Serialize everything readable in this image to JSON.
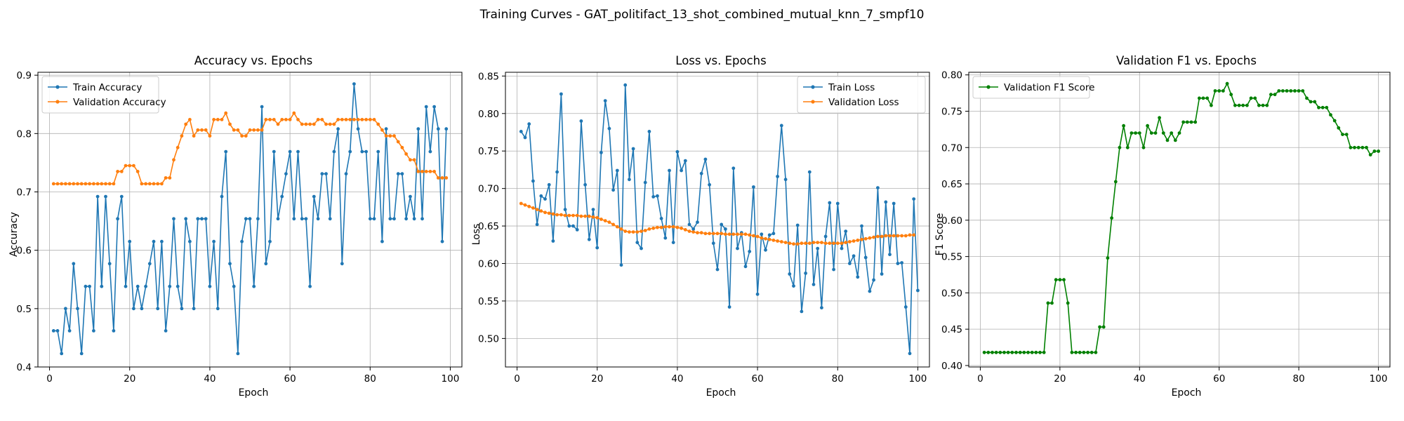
{
  "suptitle": "Training Curves - GAT_politifact_13_shot_combined_mutual_knn_7_smpf10",
  "colors": {
    "train": "#1f77b4",
    "validation": "#ff7f0e",
    "f1": "#008000",
    "grid": "#b0b0b0"
  },
  "chart_data": [
    {
      "type": "line",
      "title": "Accuracy vs. Epochs",
      "xlabel": "Epoch",
      "ylabel": "Accuracy",
      "xlim": [
        -2.9,
        102.9
      ],
      "ylim": [
        0.4,
        0.905
      ],
      "xticks": [
        0,
        20,
        40,
        60,
        80,
        100
      ],
      "yticks": [
        0.4,
        0.5,
        0.6,
        0.7,
        0.8,
        0.9
      ],
      "ytick_labels": [
        "0.4",
        "0.5",
        "0.6",
        "0.7",
        "0.8",
        "0.9"
      ],
      "legend_position": "upper left",
      "grid": true,
      "series": [
        {
          "name": "Train Accuracy",
          "color": "#1f77b4",
          "x_start": 1,
          "values": [
            0.462,
            0.462,
            0.423,
            0.5,
            0.462,
            0.577,
            0.5,
            0.423,
            0.538,
            0.538,
            0.462,
            0.692,
            0.538,
            0.692,
            0.577,
            0.462,
            0.654,
            0.692,
            0.538,
            0.615,
            0.5,
            0.538,
            0.5,
            0.538,
            0.577,
            0.615,
            0.5,
            0.615,
            0.462,
            0.538,
            0.654,
            0.538,
            0.5,
            0.654,
            0.615,
            0.5,
            0.654,
            0.654,
            0.654,
            0.538,
            0.615,
            0.5,
            0.692,
            0.769,
            0.577,
            0.538,
            0.423,
            0.615,
            0.654,
            0.654,
            0.538,
            0.654,
            0.846,
            0.577,
            0.615,
            0.769,
            0.654,
            0.692,
            0.731,
            0.769,
            0.654,
            0.769,
            0.654,
            0.654,
            0.538,
            0.692,
            0.654,
            0.731,
            0.731,
            0.654,
            0.769,
            0.808,
            0.577,
            0.731,
            0.769,
            0.885,
            0.808,
            0.769,
            0.769,
            0.654,
            0.654,
            0.769,
            0.615,
            0.808,
            0.654,
            0.654,
            0.731,
            0.731,
            0.654,
            0.692,
            0.654,
            0.808,
            0.654,
            0.846,
            0.769,
            0.846,
            0.808,
            0.615,
            0.808
          ]
        },
        {
          "name": "Validation Accuracy",
          "color": "#ff7f0e",
          "x_start": 1,
          "values": [
            0.714,
            0.714,
            0.714,
            0.714,
            0.714,
            0.714,
            0.714,
            0.714,
            0.714,
            0.714,
            0.714,
            0.714,
            0.714,
            0.714,
            0.714,
            0.714,
            0.735,
            0.735,
            0.745,
            0.745,
            0.745,
            0.735,
            0.714,
            0.714,
            0.714,
            0.714,
            0.714,
            0.714,
            0.724,
            0.724,
            0.755,
            0.776,
            0.796,
            0.816,
            0.824,
            0.796,
            0.806,
            0.806,
            0.806,
            0.796,
            0.824,
            0.824,
            0.824,
            0.835,
            0.816,
            0.806,
            0.806,
            0.796,
            0.796,
            0.806,
            0.806,
            0.806,
            0.806,
            0.824,
            0.824,
            0.824,
            0.816,
            0.824,
            0.824,
            0.824,
            0.835,
            0.824,
            0.816,
            0.816,
            0.816,
            0.816,
            0.824,
            0.824,
            0.816,
            0.816,
            0.816,
            0.824,
            0.824,
            0.824,
            0.824,
            0.824,
            0.824,
            0.824,
            0.824,
            0.824,
            0.824,
            0.816,
            0.806,
            0.796,
            0.796,
            0.796,
            0.786,
            0.776,
            0.765,
            0.755,
            0.755,
            0.735,
            0.735,
            0.735,
            0.735,
            0.735,
            0.724,
            0.724,
            0.724
          ]
        }
      ]
    },
    {
      "type": "line",
      "title": "Loss vs. Epochs",
      "xlabel": "Epoch",
      "ylabel": "Loss",
      "xlim": [
        -2.9,
        102.9
      ],
      "ylim": [
        0.462,
        0.855
      ],
      "xticks": [
        0,
        20,
        40,
        60,
        80,
        100
      ],
      "yticks": [
        0.5,
        0.55,
        0.6,
        0.65,
        0.7,
        0.75,
        0.8,
        0.85
      ],
      "ytick_labels": [
        "0.50",
        "0.55",
        "0.60",
        "0.65",
        "0.70",
        "0.75",
        "0.80",
        "0.85"
      ],
      "legend_position": "upper right",
      "grid": true,
      "series": [
        {
          "name": "Train Loss",
          "color": "#1f77b4",
          "x_start": 1,
          "values": [
            0.776,
            0.768,
            0.786,
            0.71,
            0.652,
            0.69,
            0.686,
            0.705,
            0.63,
            0.722,
            0.826,
            0.672,
            0.65,
            0.65,
            0.645,
            0.79,
            0.705,
            0.632,
            0.672,
            0.621,
            0.748,
            0.817,
            0.78,
            0.698,
            0.724,
            0.598,
            0.838,
            0.712,
            0.753,
            0.628,
            0.62,
            0.708,
            0.776,
            0.689,
            0.69,
            0.66,
            0.634,
            0.724,
            0.628,
            0.749,
            0.724,
            0.737,
            0.652,
            0.646,
            0.655,
            0.72,
            0.739,
            0.705,
            0.627,
            0.592,
            0.652,
            0.646,
            0.542,
            0.727,
            0.62,
            0.641,
            0.596,
            0.616,
            0.702,
            0.559,
            0.639,
            0.618,
            0.638,
            0.64,
            0.716,
            0.784,
            0.712,
            0.586,
            0.57,
            0.651,
            0.536,
            0.587,
            0.722,
            0.572,
            0.62,
            0.541,
            0.636,
            0.681,
            0.592,
            0.68,
            0.62,
            0.643,
            0.6,
            0.61,
            0.582,
            0.65,
            0.608,
            0.563,
            0.578,
            0.701,
            0.586,
            0.682,
            0.612,
            0.68,
            0.6,
            0.601,
            0.542,
            0.48,
            0.686,
            0.564
          ]
        },
        {
          "name": "Validation Loss",
          "color": "#ff7f0e",
          "x_start": 1,
          "values": [
            0.68,
            0.678,
            0.676,
            0.674,
            0.672,
            0.67,
            0.668,
            0.667,
            0.666,
            0.665,
            0.665,
            0.664,
            0.664,
            0.664,
            0.664,
            0.663,
            0.663,
            0.663,
            0.662,
            0.661,
            0.659,
            0.657,
            0.655,
            0.652,
            0.649,
            0.646,
            0.643,
            0.642,
            0.642,
            0.642,
            0.643,
            0.644,
            0.646,
            0.647,
            0.648,
            0.648,
            0.649,
            0.649,
            0.649,
            0.648,
            0.647,
            0.645,
            0.643,
            0.642,
            0.641,
            0.641,
            0.64,
            0.64,
            0.64,
            0.64,
            0.64,
            0.639,
            0.639,
            0.639,
            0.639,
            0.639,
            0.639,
            0.638,
            0.637,
            0.636,
            0.634,
            0.633,
            0.632,
            0.631,
            0.63,
            0.629,
            0.628,
            0.627,
            0.626,
            0.626,
            0.627,
            0.627,
            0.627,
            0.628,
            0.628,
            0.628,
            0.627,
            0.627,
            0.627,
            0.627,
            0.627,
            0.628,
            0.629,
            0.63,
            0.631,
            0.632,
            0.633,
            0.634,
            0.635,
            0.636,
            0.636,
            0.637,
            0.637,
            0.637,
            0.637,
            0.637,
            0.637,
            0.638,
            0.638
          ]
        }
      ]
    },
    {
      "type": "line",
      "title": "Validation F1 vs. Epochs",
      "xlabel": "Epoch",
      "ylabel": "F1 Score",
      "xlim": [
        -2.9,
        102.9
      ],
      "ylim": [
        0.398,
        0.8036
      ],
      "xticks": [
        0,
        20,
        40,
        60,
        80,
        100
      ],
      "yticks": [
        0.4,
        0.45,
        0.5,
        0.55,
        0.6,
        0.65,
        0.7,
        0.75,
        0.8
      ],
      "ytick_labels": [
        "0.40",
        "0.45",
        "0.50",
        "0.55",
        "0.60",
        "0.65",
        "0.70",
        "0.75",
        "0.80"
      ],
      "legend_position": "upper left",
      "grid": true,
      "series": [
        {
          "name": "Validation F1 Score",
          "color": "#008000",
          "x_start": 1,
          "values": [
            0.418,
            0.418,
            0.418,
            0.418,
            0.418,
            0.418,
            0.418,
            0.418,
            0.418,
            0.418,
            0.418,
            0.418,
            0.418,
            0.418,
            0.418,
            0.418,
            0.486,
            0.486,
            0.518,
            0.518,
            0.518,
            0.486,
            0.418,
            0.418,
            0.418,
            0.418,
            0.418,
            0.418,
            0.418,
            0.453,
            0.453,
            0.548,
            0.603,
            0.653,
            0.7,
            0.73,
            0.7,
            0.72,
            0.72,
            0.72,
            0.7,
            0.73,
            0.72,
            0.72,
            0.741,
            0.72,
            0.71,
            0.72,
            0.71,
            0.72,
            0.735,
            0.735,
            0.735,
            0.735,
            0.768,
            0.768,
            0.768,
            0.758,
            0.778,
            0.778,
            0.778,
            0.788,
            0.773,
            0.758,
            0.758,
            0.758,
            0.758,
            0.768,
            0.768,
            0.758,
            0.758,
            0.758,
            0.773,
            0.773,
            0.778,
            0.778,
            0.778,
            0.778,
            0.778,
            0.778,
            0.778,
            0.768,
            0.763,
            0.763,
            0.755,
            0.755,
            0.755,
            0.745,
            0.737,
            0.727,
            0.718,
            0.718,
            0.7,
            0.7,
            0.7,
            0.7,
            0.7,
            0.69,
            0.695,
            0.695
          ]
        }
      ]
    }
  ]
}
